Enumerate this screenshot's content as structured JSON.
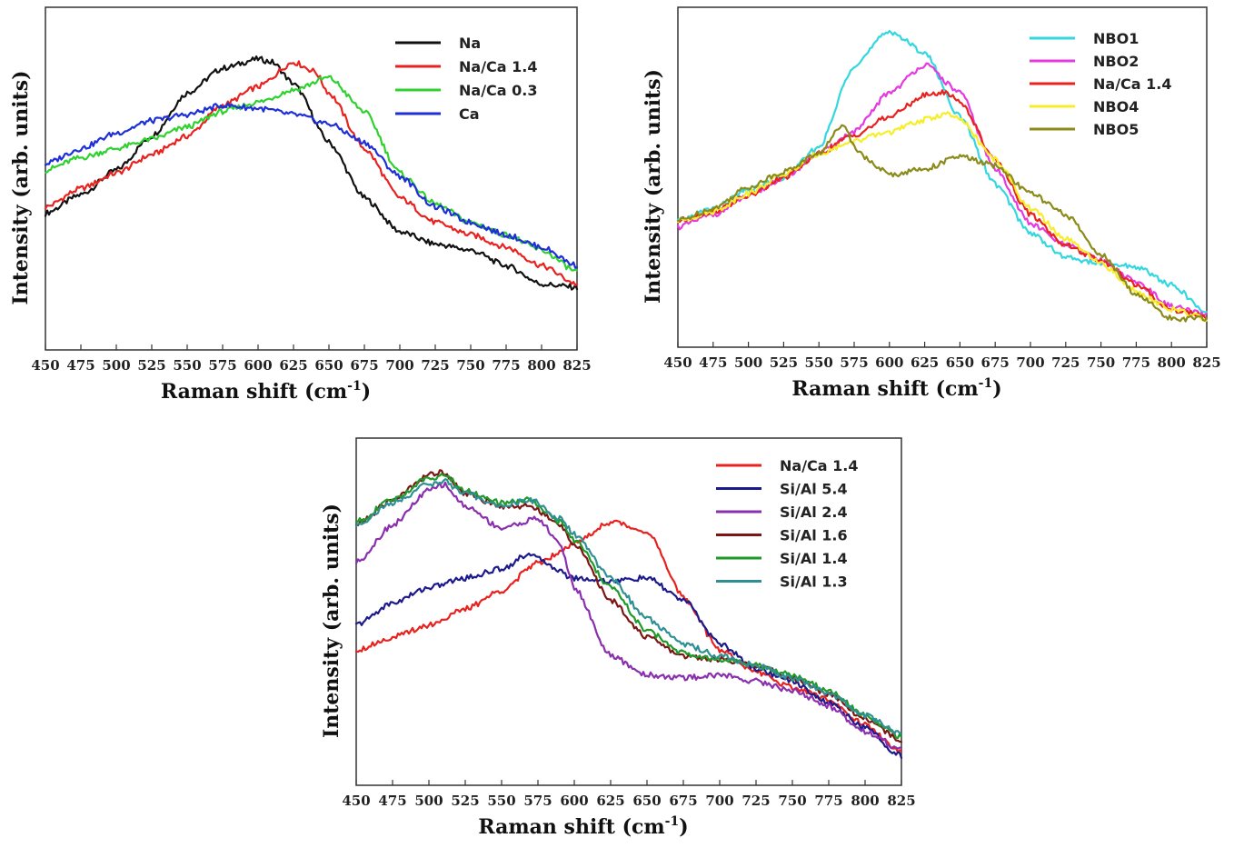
{
  "chart_data": [
    {
      "type": "line",
      "xlabel": "Raman shift (cm",
      "xlabel_sup": "-1",
      "xlabel_end": ")",
      "ylabel": "Intensity (arb. units)",
      "xlim": [
        450,
        825
      ],
      "ylim": [
        0,
        1
      ],
      "xticks": [
        "450",
        "475",
        "500",
        "525",
        "550",
        "575",
        "600",
        "625",
        "650",
        "675",
        "700",
        "725",
        "750",
        "775",
        "800",
        "825"
      ],
      "legend_position": "top-right",
      "series": [
        {
          "name": "Na",
          "color": "#111111",
          "x": [
            450,
            475,
            500,
            525,
            550,
            575,
            600,
            610,
            625,
            650,
            675,
            700,
            725,
            750,
            775,
            800,
            825
          ],
          "y": [
            0.41,
            0.47,
            0.55,
            0.66,
            0.8,
            0.88,
            0.91,
            0.9,
            0.83,
            0.64,
            0.46,
            0.35,
            0.31,
            0.29,
            0.24,
            0.18,
            0.17
          ]
        },
        {
          "name": "Na/Ca 1.4",
          "color": "#e8221f",
          "x": [
            450,
            475,
            500,
            525,
            550,
            575,
            600,
            625,
            640,
            650,
            675,
            700,
            725,
            750,
            775,
            800,
            825
          ],
          "y": [
            0.43,
            0.49,
            0.54,
            0.6,
            0.66,
            0.76,
            0.82,
            0.9,
            0.87,
            0.8,
            0.62,
            0.46,
            0.38,
            0.34,
            0.3,
            0.24,
            0.18
          ]
        },
        {
          "name": "Na/Ca 0.3",
          "color": "#2fd12f",
          "x": [
            450,
            475,
            500,
            525,
            550,
            575,
            600,
            625,
            650,
            675,
            700,
            725,
            750,
            775,
            800,
            825
          ],
          "y": [
            0.55,
            0.59,
            0.62,
            0.65,
            0.69,
            0.74,
            0.77,
            0.81,
            0.85,
            0.74,
            0.54,
            0.44,
            0.38,
            0.34,
            0.29,
            0.22
          ]
        },
        {
          "name": "Ca",
          "color": "#1f2fd8",
          "x": [
            450,
            475,
            500,
            525,
            550,
            575,
            600,
            625,
            650,
            675,
            700,
            725,
            750,
            775,
            800,
            825
          ],
          "y": [
            0.57,
            0.62,
            0.67,
            0.71,
            0.73,
            0.76,
            0.75,
            0.73,
            0.7,
            0.64,
            0.53,
            0.43,
            0.38,
            0.34,
            0.3,
            0.24
          ]
        }
      ]
    },
    {
      "type": "line",
      "xlabel": "Raman shift (cm",
      "xlabel_sup": "-1",
      "xlabel_end": ")",
      "ylabel": "Intensity (arb. units)",
      "xlim": [
        450,
        825
      ],
      "ylim": [
        0,
        1
      ],
      "xticks": [
        "450",
        "475",
        "500",
        "525",
        "550",
        "575",
        "600",
        "625",
        "650",
        "675",
        "700",
        "725",
        "750",
        "775",
        "800",
        "825"
      ],
      "legend_position": "top-right",
      "series": [
        {
          "name": "NBO1",
          "color": "#33d7e0",
          "x": [
            450,
            475,
            500,
            525,
            550,
            575,
            600,
            625,
            650,
            675,
            700,
            725,
            750,
            775,
            800,
            825
          ],
          "y": [
            0.38,
            0.42,
            0.48,
            0.52,
            0.62,
            0.89,
            1.0,
            0.93,
            0.72,
            0.5,
            0.34,
            0.26,
            0.24,
            0.23,
            0.17,
            0.08
          ]
        },
        {
          "name": "NBO2",
          "color": "#e43ae0",
          "x": [
            450,
            475,
            500,
            525,
            550,
            575,
            600,
            625,
            650,
            675,
            700,
            725,
            750,
            775,
            800,
            825
          ],
          "y": [
            0.36,
            0.4,
            0.46,
            0.52,
            0.6,
            0.67,
            0.8,
            0.89,
            0.8,
            0.55,
            0.37,
            0.3,
            0.25,
            0.18,
            0.1,
            0.07
          ]
        },
        {
          "name": "Na/Ca 1.4",
          "color": "#e8221f",
          "x": [
            450,
            475,
            500,
            525,
            550,
            575,
            600,
            625,
            640,
            650,
            675,
            700,
            725,
            750,
            775,
            800,
            825
          ],
          "y": [
            0.38,
            0.41,
            0.46,
            0.52,
            0.6,
            0.66,
            0.72,
            0.79,
            0.8,
            0.77,
            0.58,
            0.4,
            0.3,
            0.25,
            0.17,
            0.09,
            0.07
          ]
        },
        {
          "name": "NBO4",
          "color": "#f6ee2a",
          "x": [
            450,
            475,
            500,
            525,
            550,
            575,
            600,
            625,
            640,
            650,
            675,
            700,
            725,
            750,
            775,
            800,
            825
          ],
          "y": [
            0.38,
            0.41,
            0.47,
            0.53,
            0.6,
            0.64,
            0.67,
            0.71,
            0.73,
            0.71,
            0.58,
            0.42,
            0.32,
            0.24,
            0.15,
            0.09,
            0.06
          ]
        },
        {
          "name": "NBO5",
          "color": "#8b8b1c",
          "x": [
            450,
            475,
            500,
            525,
            550,
            568,
            575,
            590,
            600,
            625,
            650,
            675,
            700,
            725,
            750,
            775,
            800,
            825
          ],
          "y": [
            0.38,
            0.42,
            0.49,
            0.54,
            0.6,
            0.7,
            0.62,
            0.56,
            0.53,
            0.55,
            0.59,
            0.56,
            0.47,
            0.4,
            0.27,
            0.14,
            0.06,
            0.06
          ]
        }
      ]
    },
    {
      "type": "line",
      "xlabel": "Raman shift (cm",
      "xlabel_sup": "-1",
      "xlabel_end": ")",
      "ylabel": "Intensity (arb. units)",
      "xlim": [
        450,
        825
      ],
      "ylim": [
        0,
        1
      ],
      "xticks": [
        "450",
        "475",
        "500",
        "525",
        "550",
        "575",
        "600",
        "625",
        "650",
        "675",
        "700",
        "725",
        "750",
        "775",
        "800",
        "825"
      ],
      "legend_position": "top-right",
      "series": [
        {
          "name": "Na/Ca 1.4",
          "color": "#e8221f",
          "x": [
            450,
            475,
            500,
            525,
            550,
            575,
            600,
            625,
            650,
            675,
            700,
            725,
            750,
            775,
            800,
            825
          ],
          "y": [
            0.4,
            0.44,
            0.48,
            0.53,
            0.59,
            0.68,
            0.74,
            0.81,
            0.78,
            0.57,
            0.4,
            0.33,
            0.28,
            0.24,
            0.16,
            0.07
          ]
        },
        {
          "name": "Si/Al 5.4",
          "color": "#1d1b8c",
          "x": [
            450,
            475,
            500,
            525,
            550,
            570,
            575,
            600,
            625,
            650,
            675,
            700,
            725,
            750,
            775,
            800,
            825
          ],
          "y": [
            0.48,
            0.55,
            0.6,
            0.63,
            0.66,
            0.71,
            0.69,
            0.63,
            0.62,
            0.63,
            0.56,
            0.42,
            0.34,
            0.3,
            0.23,
            0.15,
            0.06
          ]
        },
        {
          "name": "Si/Al 2.4",
          "color": "#8a2fae",
          "x": [
            450,
            475,
            500,
            510,
            525,
            550,
            575,
            590,
            600,
            625,
            650,
            675,
            700,
            725,
            750,
            775,
            800,
            825
          ],
          "y": [
            0.68,
            0.8,
            0.91,
            0.93,
            0.86,
            0.79,
            0.82,
            0.74,
            0.6,
            0.38,
            0.32,
            0.31,
            0.32,
            0.3,
            0.27,
            0.22,
            0.14,
            0.08
          ]
        },
        {
          "name": "Si/Al 1.6",
          "color": "#7d1515",
          "x": [
            450,
            475,
            500,
            510,
            525,
            550,
            570,
            590,
            600,
            625,
            650,
            675,
            700,
            725,
            750,
            775,
            800,
            825
          ],
          "y": [
            0.8,
            0.88,
            0.96,
            0.97,
            0.9,
            0.86,
            0.86,
            0.8,
            0.74,
            0.56,
            0.44,
            0.38,
            0.37,
            0.35,
            0.31,
            0.26,
            0.18,
            0.11
          ]
        },
        {
          "name": "Si/Al 1.4",
          "color": "#1f9a2a",
          "x": [
            450,
            475,
            500,
            510,
            525,
            550,
            570,
            590,
            600,
            625,
            650,
            675,
            700,
            725,
            750,
            775,
            800,
            825
          ],
          "y": [
            0.81,
            0.88,
            0.95,
            0.96,
            0.91,
            0.87,
            0.88,
            0.81,
            0.75,
            0.6,
            0.46,
            0.39,
            0.37,
            0.35,
            0.32,
            0.27,
            0.19,
            0.12
          ]
        },
        {
          "name": "Si/Al 1.3",
          "color": "#2f8f93",
          "x": [
            450,
            475,
            500,
            510,
            525,
            550,
            570,
            590,
            600,
            625,
            650,
            675,
            700,
            725,
            750,
            775,
            800,
            825
          ],
          "y": [
            0.8,
            0.87,
            0.93,
            0.94,
            0.9,
            0.86,
            0.88,
            0.82,
            0.77,
            0.63,
            0.5,
            0.42,
            0.38,
            0.35,
            0.31,
            0.26,
            0.19,
            0.13
          ]
        }
      ]
    }
  ]
}
